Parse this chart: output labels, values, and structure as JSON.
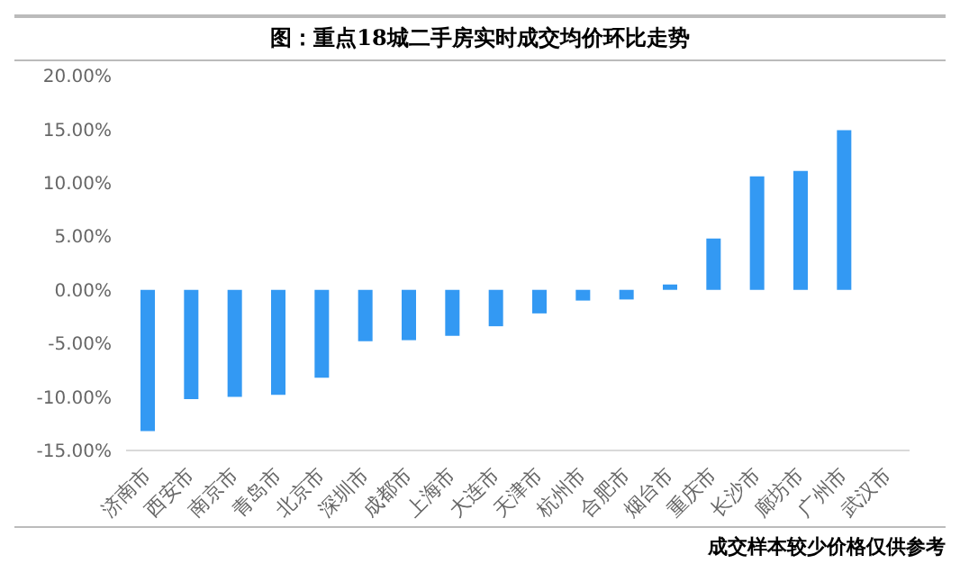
{
  "chart_data": {
    "type": "bar",
    "title": "图：重点18城二手房实时成交均价环比走势",
    "categories": [
      "济南市",
      "西安市",
      "南京市",
      "青岛市",
      "北京市",
      "深圳市",
      "成都市",
      "上海市",
      "大连市",
      "天津市",
      "杭州市",
      "合肥市",
      "烟台市",
      "重庆市",
      "长沙市",
      "廊坊市",
      "广州市",
      "武汉市"
    ],
    "values": [
      -13.2,
      -10.2,
      -10.0,
      -9.8,
      -8.2,
      -4.8,
      -4.7,
      -4.3,
      -3.4,
      -2.2,
      -1.0,
      -0.9,
      0.5,
      4.8,
      10.6,
      11.1,
      14.9,
      0
    ],
    "color": "#3399f3",
    "ylim": [
      -15,
      20
    ],
    "yticks": [
      {
        "value": -15,
        "label": "-15.00%"
      },
      {
        "value": -10,
        "label": "-10.00%"
      },
      {
        "value": -5,
        "label": "-5.00%"
      },
      {
        "value": 0,
        "label": "0.00%"
      },
      {
        "value": 5,
        "label": "5.00%"
      },
      {
        "value": 10,
        "label": "10.00%"
      },
      {
        "value": 15,
        "label": "15.00%"
      },
      {
        "value": 20,
        "label": "20.00%"
      }
    ],
    "grid": false,
    "legend": false,
    "annotations": [
      "成交样本较少价格仅供参考"
    ]
  }
}
